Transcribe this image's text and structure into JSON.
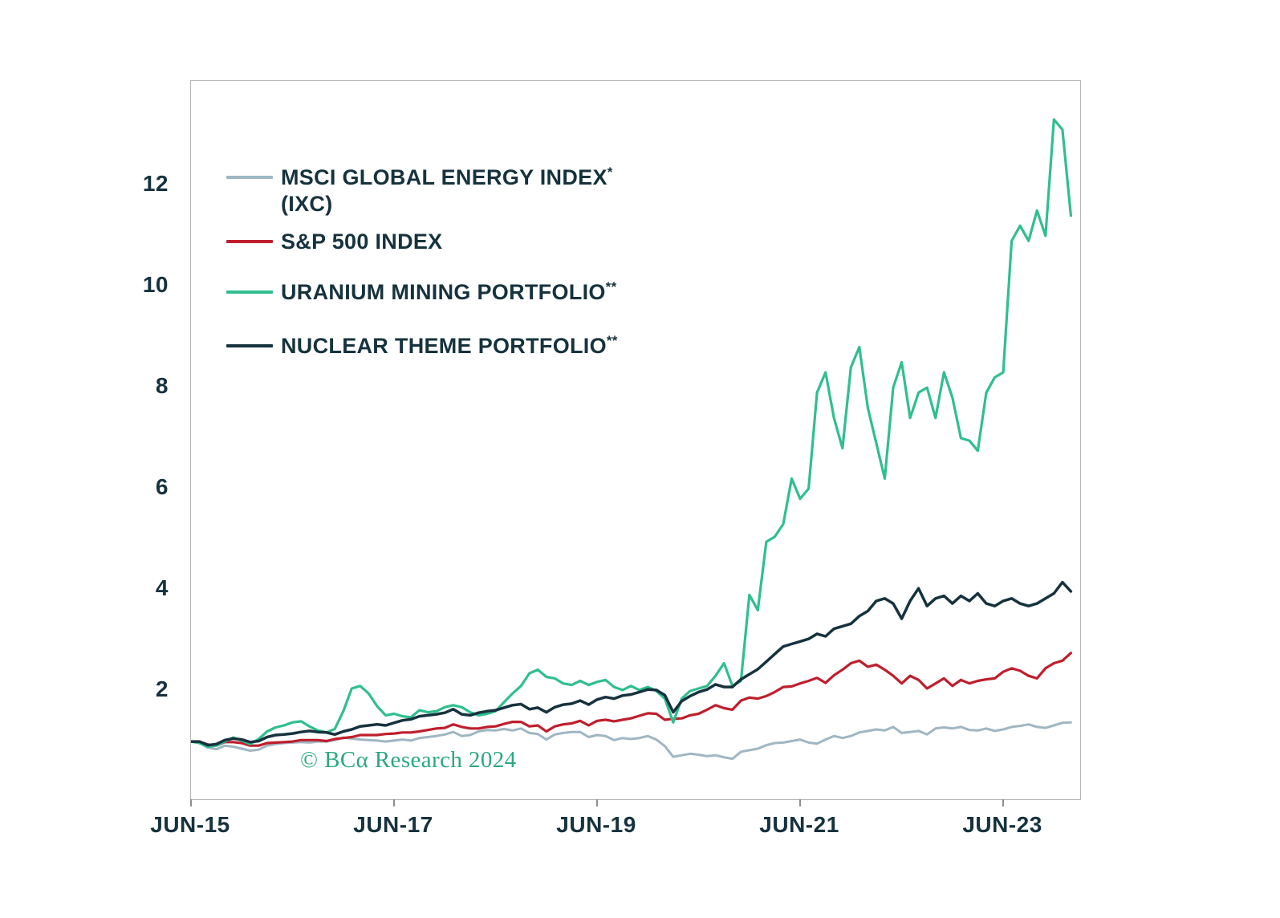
{
  "chart_data": {
    "type": "line",
    "title": "",
    "xlabel": "",
    "ylabel": "",
    "grid": false,
    "legend_position": "top-left",
    "ylim": [
      -0.14,
      14.06
    ],
    "y_ticks": [
      2,
      4,
      6,
      8,
      10,
      12
    ],
    "x_span_months": 105.1,
    "x_note": "monthly observations indexed from Jun-2015 = 1.0",
    "x_ticks": [
      {
        "label": "JUN-15",
        "month": 0
      },
      {
        "label": "JUN-17",
        "month": 24
      },
      {
        "label": "JUN-19",
        "month": 48
      },
      {
        "label": "JUN-21",
        "month": 72
      },
      {
        "label": "JUN-23",
        "month": 96
      }
    ],
    "annotations": [
      "© BCα Research 2024"
    ],
    "series": [
      {
        "id": "msci-global-energy-index",
        "label": "MSCI GLOBAL ENERGY INDEX",
        "sup": "*",
        "label2": "(IXC)",
        "color": "#9fb6c3",
        "width": 3,
        "values": [
          1.0,
          0.97,
          0.88,
          0.85,
          0.92,
          0.9,
          0.86,
          0.82,
          0.84,
          0.92,
          0.95,
          0.97,
          0.98,
          0.99,
          0.98,
          1.0,
          1.0,
          1.03,
          1.08,
          1.06,
          1.04,
          1.03,
          1.02,
          1.0,
          1.02,
          1.04,
          1.02,
          1.07,
          1.09,
          1.11,
          1.14,
          1.19,
          1.11,
          1.13,
          1.2,
          1.23,
          1.22,
          1.25,
          1.22,
          1.26,
          1.17,
          1.15,
          1.04,
          1.14,
          1.17,
          1.19,
          1.19,
          1.09,
          1.13,
          1.11,
          1.03,
          1.07,
          1.05,
          1.07,
          1.11,
          1.04,
          0.91,
          0.7,
          0.73,
          0.76,
          0.74,
          0.71,
          0.73,
          0.69,
          0.66,
          0.8,
          0.83,
          0.86,
          0.93,
          0.97,
          0.98,
          1.01,
          1.04,
          0.98,
          0.96,
          1.04,
          1.11,
          1.07,
          1.11,
          1.18,
          1.21,
          1.24,
          1.22,
          1.29,
          1.17,
          1.19,
          1.21,
          1.14,
          1.26,
          1.28,
          1.26,
          1.29,
          1.23,
          1.22,
          1.26,
          1.21,
          1.24,
          1.29,
          1.31,
          1.34,
          1.29,
          1.27,
          1.32,
          1.37,
          1.38
        ]
      },
      {
        "id": "sp-500-index",
        "label": "S&P 500 INDEX",
        "sup": "",
        "label2": "",
        "color": "#bf1e2c",
        "width": 3.2,
        "values": [
          1.0,
          1.0,
          0.94,
          0.92,
          0.99,
          0.99,
          0.97,
          0.92,
          0.92,
          0.97,
          0.98,
          0.99,
          1.0,
          1.03,
          1.03,
          1.03,
          1.01,
          1.05,
          1.07,
          1.09,
          1.13,
          1.13,
          1.13,
          1.15,
          1.16,
          1.18,
          1.18,
          1.2,
          1.23,
          1.26,
          1.27,
          1.34,
          1.29,
          1.26,
          1.26,
          1.29,
          1.3,
          1.35,
          1.39,
          1.39,
          1.3,
          1.32,
          1.2,
          1.3,
          1.34,
          1.36,
          1.41,
          1.32,
          1.41,
          1.43,
          1.4,
          1.43,
          1.46,
          1.51,
          1.56,
          1.55,
          1.43,
          1.45,
          1.46,
          1.52,
          1.55,
          1.63,
          1.72,
          1.66,
          1.63,
          1.81,
          1.87,
          1.85,
          1.9,
          1.98,
          2.08,
          2.09,
          2.15,
          2.2,
          2.26,
          2.16,
          2.31,
          2.42,
          2.55,
          2.6,
          2.48,
          2.52,
          2.42,
          2.3,
          2.15,
          2.3,
          2.22,
          2.05,
          2.15,
          2.25,
          2.1,
          2.22,
          2.15,
          2.2,
          2.23,
          2.25,
          2.38,
          2.45,
          2.4,
          2.3,
          2.25,
          2.45,
          2.55,
          2.6,
          2.75
        ]
      },
      {
        "id": "uranium-mining-portfolio",
        "label": "URANIUM MINING PORTFOLIO",
        "sup": "**",
        "label2": "",
        "color": "#2fbf8e",
        "width": 3.2,
        "values": [
          1.0,
          0.97,
          0.9,
          0.92,
          1.0,
          1.08,
          1.02,
          0.95,
          1.05,
          1.2,
          1.28,
          1.32,
          1.38,
          1.4,
          1.3,
          1.22,
          1.18,
          1.25,
          1.6,
          2.05,
          2.1,
          1.95,
          1.7,
          1.52,
          1.55,
          1.5,
          1.48,
          1.62,
          1.58,
          1.6,
          1.68,
          1.72,
          1.68,
          1.58,
          1.52,
          1.55,
          1.6,
          1.78,
          1.95,
          2.1,
          2.35,
          2.42,
          2.28,
          2.25,
          2.15,
          2.12,
          2.2,
          2.12,
          2.18,
          2.22,
          2.08,
          2.02,
          2.1,
          2.02,
          2.08,
          2.0,
          1.85,
          1.38,
          1.85,
          2.0,
          2.05,
          2.1,
          2.3,
          2.55,
          2.1,
          2.2,
          3.9,
          3.6,
          4.95,
          5.05,
          5.3,
          6.2,
          5.8,
          6.0,
          7.9,
          8.3,
          7.4,
          6.8,
          8.4,
          8.8,
          7.6,
          6.9,
          6.2,
          8.0,
          8.5,
          7.4,
          7.9,
          8.0,
          7.4,
          8.3,
          7.8,
          7.0,
          6.95,
          6.75,
          7.9,
          8.2,
          8.3,
          10.9,
          11.2,
          10.9,
          11.5,
          11.0,
          13.3,
          13.1,
          11.4
        ]
      },
      {
        "id": "nuclear-theme-portfolio",
        "label": "NUCLEAR THEME PORTFOLIO",
        "sup": "**",
        "label2": "",
        "color": "#16323e",
        "width": 3.5,
        "values": [
          1.0,
          1.0,
          0.93,
          0.95,
          1.03,
          1.06,
          1.04,
          0.99,
          1.01,
          1.09,
          1.13,
          1.14,
          1.16,
          1.19,
          1.21,
          1.19,
          1.18,
          1.14,
          1.2,
          1.24,
          1.3,
          1.32,
          1.34,
          1.32,
          1.37,
          1.42,
          1.44,
          1.5,
          1.52,
          1.54,
          1.57,
          1.64,
          1.54,
          1.52,
          1.57,
          1.6,
          1.62,
          1.67,
          1.72,
          1.74,
          1.64,
          1.67,
          1.58,
          1.68,
          1.73,
          1.75,
          1.81,
          1.73,
          1.83,
          1.88,
          1.85,
          1.91,
          1.93,
          1.98,
          2.03,
          2.02,
          1.92,
          1.58,
          1.8,
          1.9,
          1.98,
          2.03,
          2.13,
          2.08,
          2.08,
          2.23,
          2.33,
          2.43,
          2.58,
          2.73,
          2.88,
          2.93,
          2.98,
          3.03,
          3.13,
          3.08,
          3.23,
          3.28,
          3.33,
          3.48,
          3.58,
          3.78,
          3.83,
          3.73,
          3.43,
          3.78,
          4.03,
          3.68,
          3.83,
          3.88,
          3.73,
          3.88,
          3.78,
          3.93,
          3.73,
          3.68,
          3.78,
          3.83,
          3.73,
          3.68,
          3.73,
          3.83,
          3.93,
          4.15,
          3.97
        ]
      }
    ]
  }
}
